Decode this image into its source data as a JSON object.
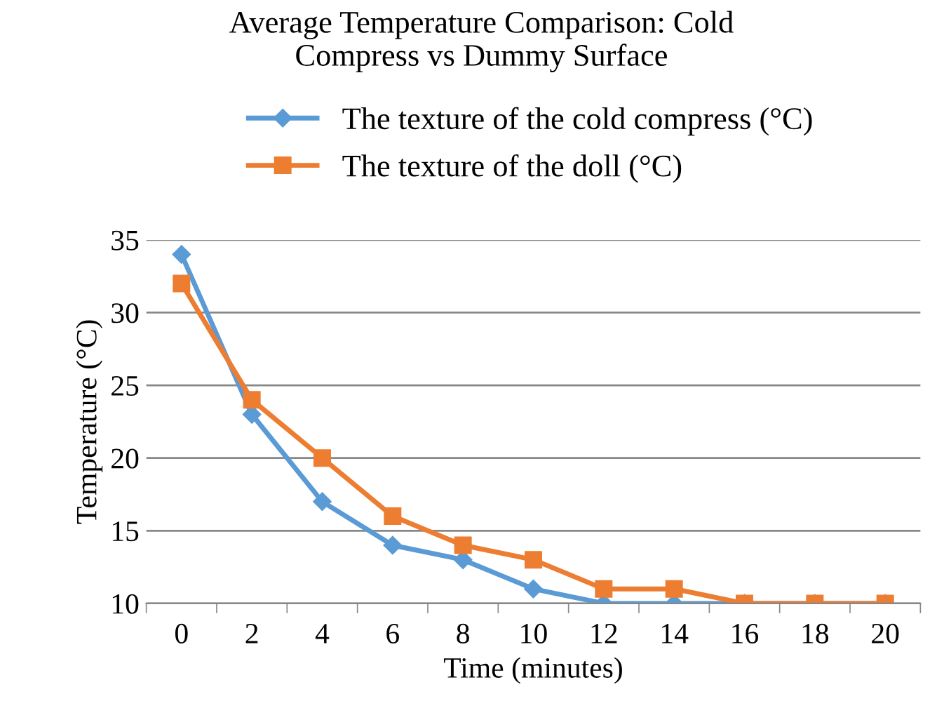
{
  "chart_data": {
    "type": "line",
    "title": "Average Temperature Comparison: Cold\nCompress vs Dummy Surface",
    "xlabel": "Time (minutes)",
    "ylabel": "Temperature (°C)",
    "categories": [
      "0",
      "2",
      "4",
      "6",
      "8",
      "10",
      "12",
      "14",
      "16",
      "18",
      "20"
    ],
    "series": [
      {
        "name": "The texture of the cold compress (°C)",
        "color": "#5b9bd5",
        "marker": "diamond",
        "values": [
          34,
          23,
          17,
          14,
          13,
          11,
          10,
          10,
          10,
          10,
          10
        ]
      },
      {
        "name": "The texture of the doll (°C)",
        "color": "#ed7d31",
        "marker": "square",
        "values": [
          32,
          24,
          20,
          16,
          14,
          13,
          11,
          11,
          10,
          10,
          10
        ]
      }
    ],
    "ylim": [
      10,
      35
    ],
    "yticks": [
      10,
      15,
      20,
      25,
      30,
      35
    ],
    "grid": "y",
    "legend": "top",
    "line_style": "solid"
  }
}
